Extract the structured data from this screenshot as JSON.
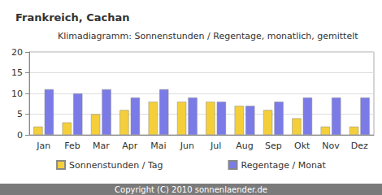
{
  "chart_data": {
    "type": "bar",
    "title": "Frankreich, Cachan",
    "subtitle": "Klimadiagramm: Sonnenstunden / Regentage, monatlich, gemittelt",
    "footer": "Copyright (C) 2010 sonnenlaender.de",
    "categories": [
      "Jan",
      "Feb",
      "Mar",
      "Apr",
      "Mai",
      "Jun",
      "Jul",
      "Aug",
      "Sep",
      "Okt",
      "Nov",
      "Dez"
    ],
    "series": [
      {
        "name": "Sonnenstunden / Tag",
        "color": "#f5cf3a",
        "values": [
          2,
          3,
          5,
          6,
          8,
          8,
          8,
          7,
          6,
          4,
          2,
          2
        ]
      },
      {
        "name": "Regentage / Monat",
        "color": "#7b7be8",
        "values": [
          11,
          10,
          11,
          9,
          11,
          9,
          8,
          7,
          8,
          9,
          9,
          9
        ]
      }
    ],
    "ylim": [
      0,
      20
    ],
    "yticks": [
      0,
      5,
      10,
      15,
      20
    ],
    "grid": true,
    "legend": "bottom"
  }
}
